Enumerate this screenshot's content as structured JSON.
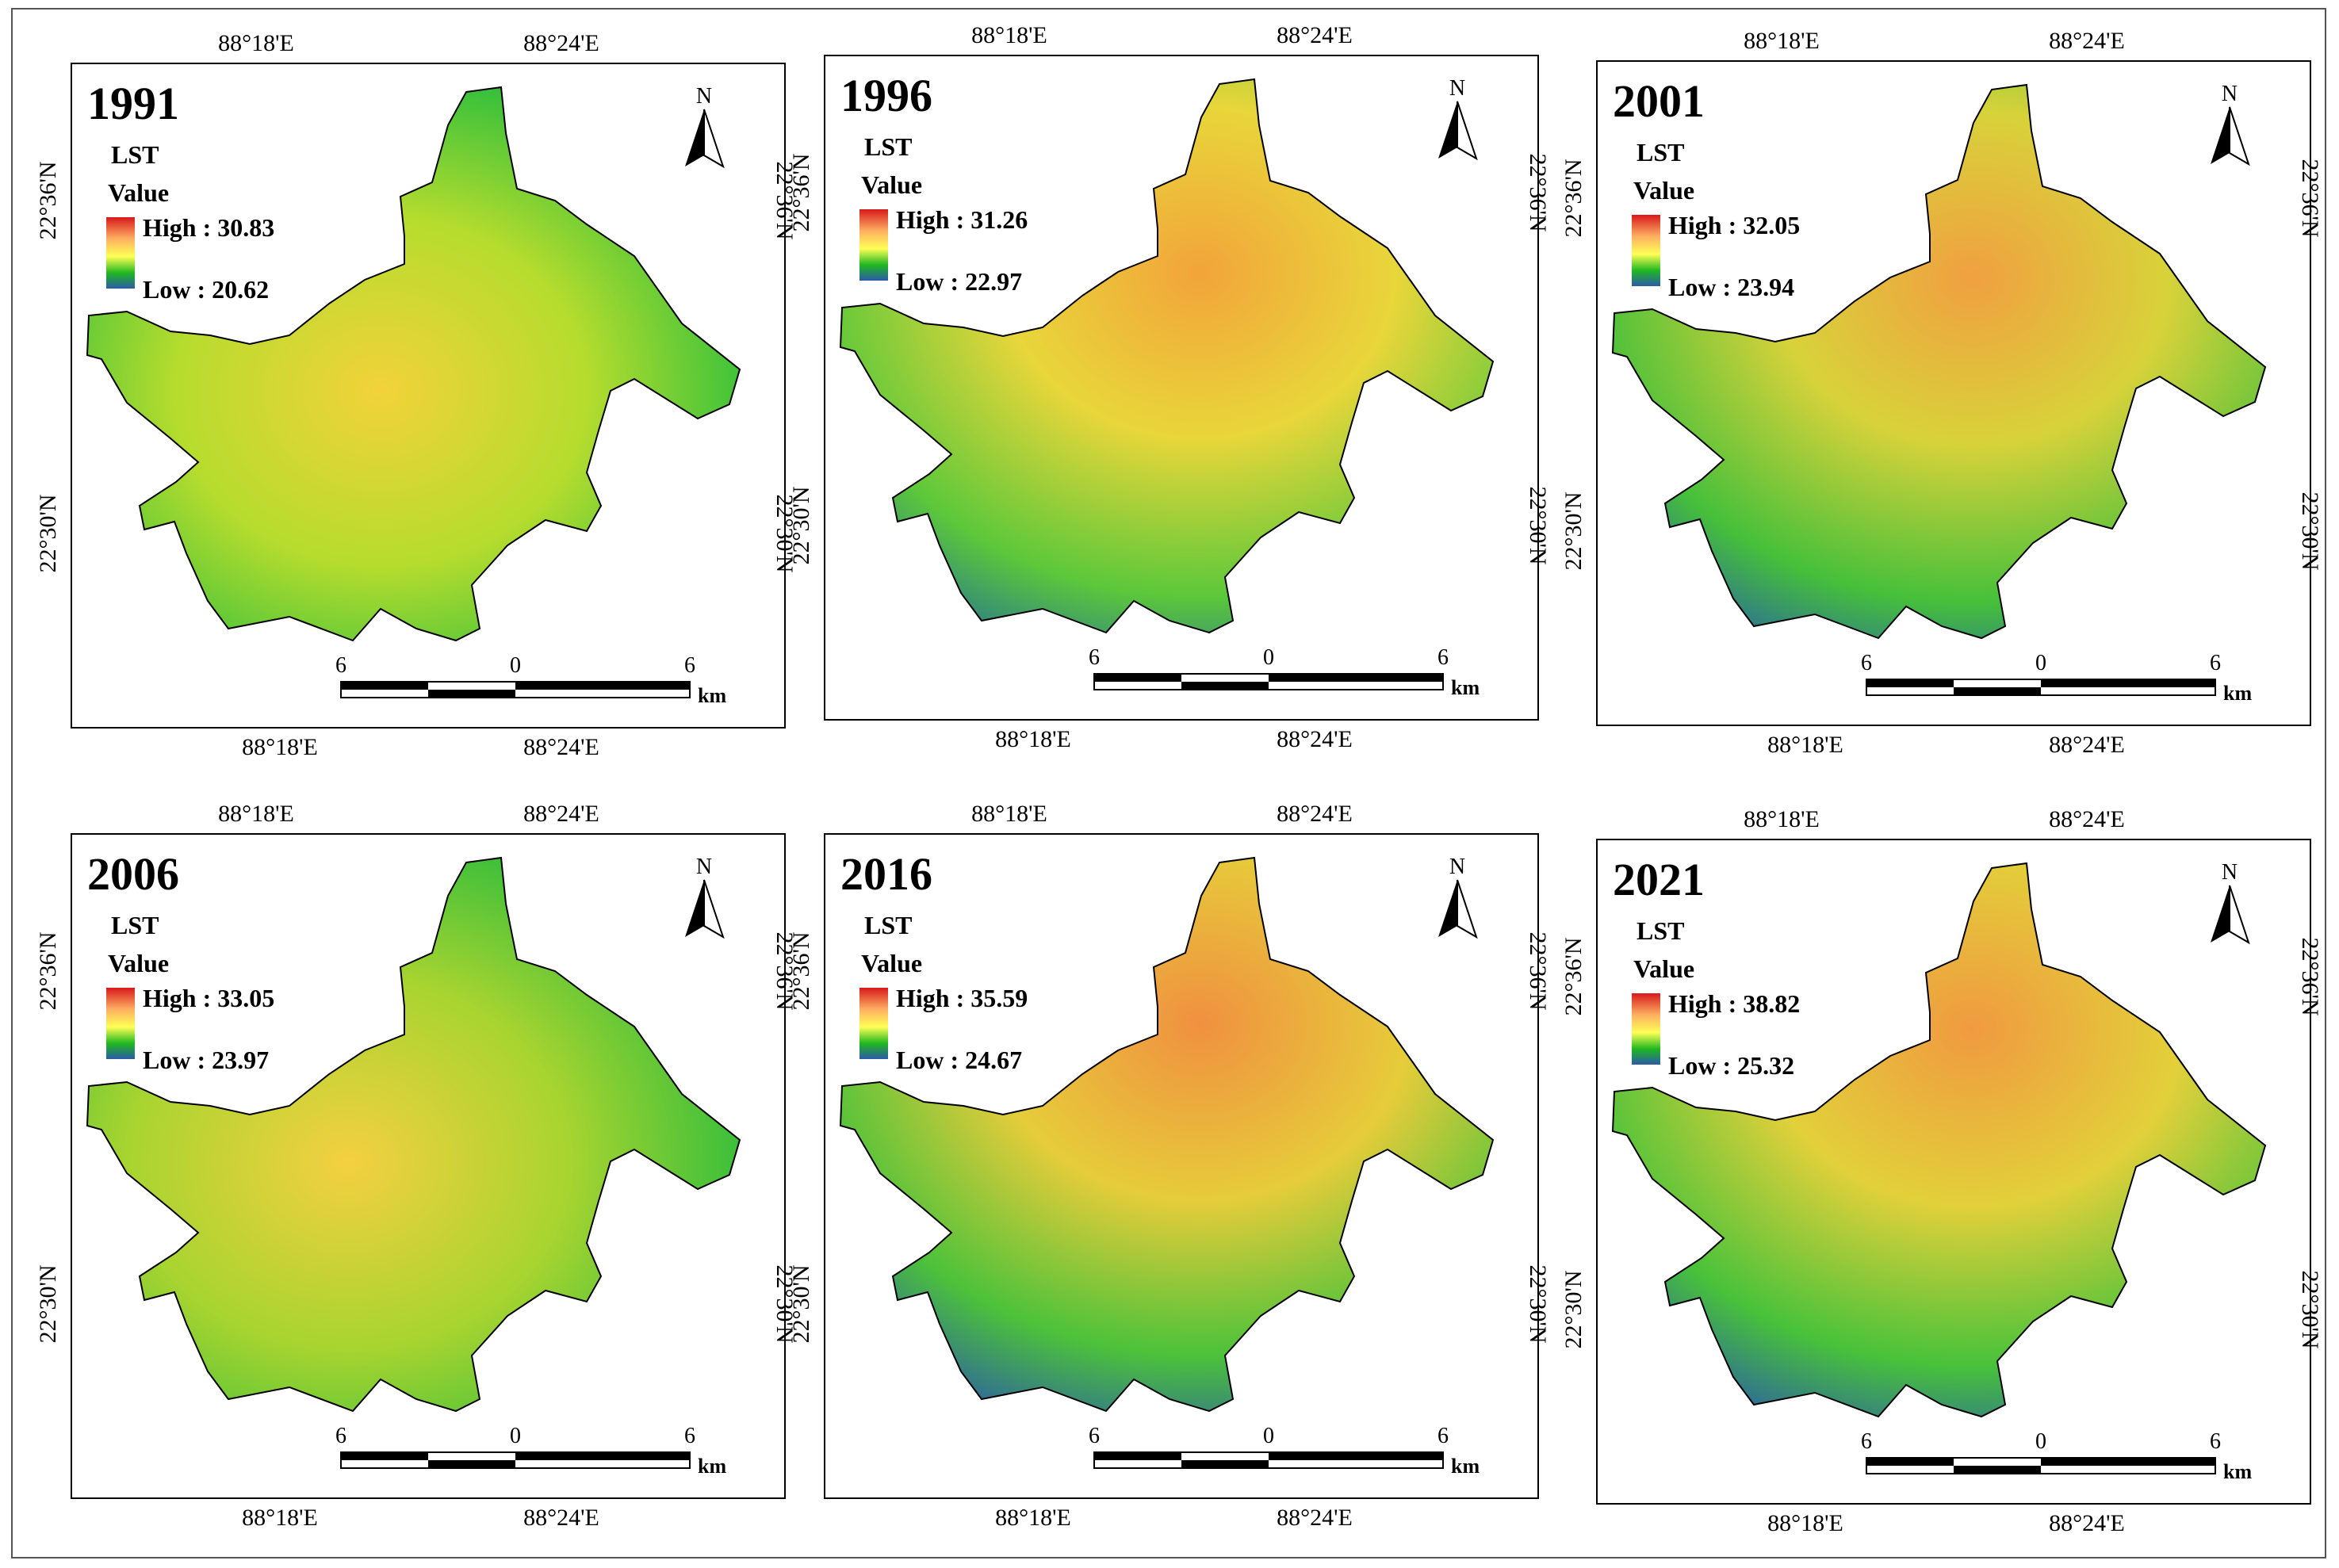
{
  "figure": {
    "panels": [
      {
        "year": "1991",
        "legend": {
          "title": "LST",
          "subtitle": "Value",
          "high": "High : 30.83",
          "low": "Low : 20.62"
        }
      },
      {
        "year": "1996",
        "legend": {
          "title": "LST",
          "subtitle": "Value",
          "high": "High : 31.26",
          "low": "Low : 22.97"
        }
      },
      {
        "year": "2001",
        "legend": {
          "title": "LST",
          "subtitle": "Value",
          "high": "High : 32.05",
          "low": "Low : 23.94"
        }
      },
      {
        "year": "2006",
        "legend": {
          "title": "LST",
          "subtitle": "Value",
          "high": "High : 33.05",
          "low": "Low : 23.97"
        }
      },
      {
        "year": "2016",
        "legend": {
          "title": "LST",
          "subtitle": "Value",
          "high": "High : 35.59",
          "low": "Low : 24.67"
        }
      },
      {
        "year": "2021",
        "legend": {
          "title": "LST",
          "subtitle": "Value",
          "high": "High : 38.82",
          "low": "Low : 25.32"
        }
      }
    ],
    "longitude_labels": [
      "88°18'E",
      "88°24'E"
    ],
    "latitude_labels": [
      "22°36'N",
      "22°30'N"
    ],
    "north_label": "N",
    "scalebar": {
      "ticks": [
        "6",
        "0",
        "6"
      ],
      "unit": "km"
    },
    "colors": {
      "high": "#d7191c",
      "mid_high": "#fdae61",
      "mid": "#ffff55",
      "mid_low": "#1fb81f",
      "low": "#2b5aa8",
      "frame": "#000000"
    }
  }
}
